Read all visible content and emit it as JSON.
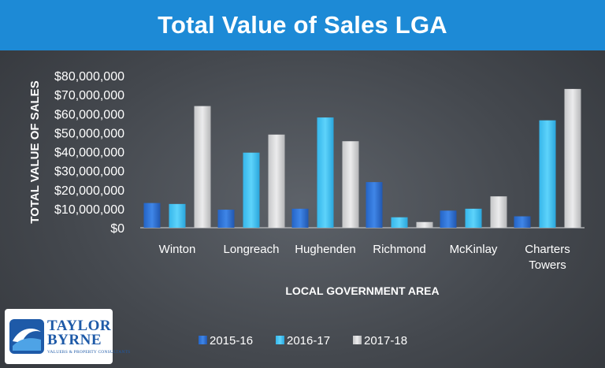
{
  "header": {
    "title": "Total Value of Sales LGA"
  },
  "logo": {
    "line1": "TAYLOR",
    "line2": "BYRNE",
    "tagline": "VALUERS & PROPERTY CONSULTANTS"
  },
  "colors": {
    "header_bg": "#1d8ad6",
    "series": [
      "#2e6fd1",
      "#3fc3f2",
      "#d2d3d5"
    ]
  },
  "chart_data": {
    "type": "bar",
    "title": "",
    "xlabel": "LOCAL GOVERNMENT AREA",
    "ylabel": "TOTAL VALUE OF SALES",
    "ylim": [
      0,
      80000000
    ],
    "yticks": [
      {
        "value": 0,
        "label": "$0"
      },
      {
        "value": 10000000,
        "label": "$10,000,000"
      },
      {
        "value": 20000000,
        "label": "$20,000,000"
      },
      {
        "value": 30000000,
        "label": "$30,000,000"
      },
      {
        "value": 40000000,
        "label": "$40,000,000"
      },
      {
        "value": 50000000,
        "label": "$50,000,000"
      },
      {
        "value": 60000000,
        "label": "$60,000,000"
      },
      {
        "value": 70000000,
        "label": "$70,000,000"
      },
      {
        "value": 80000000,
        "label": "$80,000,000"
      }
    ],
    "categories": [
      [
        "Winton"
      ],
      [
        "Longreach"
      ],
      [
        "Hughenden"
      ],
      [
        "Richmond"
      ],
      [
        "McKinlay"
      ],
      [
        "Charters",
        "Towers"
      ]
    ],
    "series": [
      {
        "name": "2015-16",
        "values": [
          13000000,
          9500000,
          10000000,
          24000000,
          9000000,
          6000000
        ]
      },
      {
        "name": "2016-17",
        "values": [
          12500000,
          39500000,
          58000000,
          5500000,
          10000000,
          56500000
        ]
      },
      {
        "name": "2017-18",
        "values": [
          64000000,
          49000000,
          45500000,
          3000000,
          16500000,
          73000000
        ]
      }
    ],
    "grid": false,
    "legend_position": "bottom"
  }
}
